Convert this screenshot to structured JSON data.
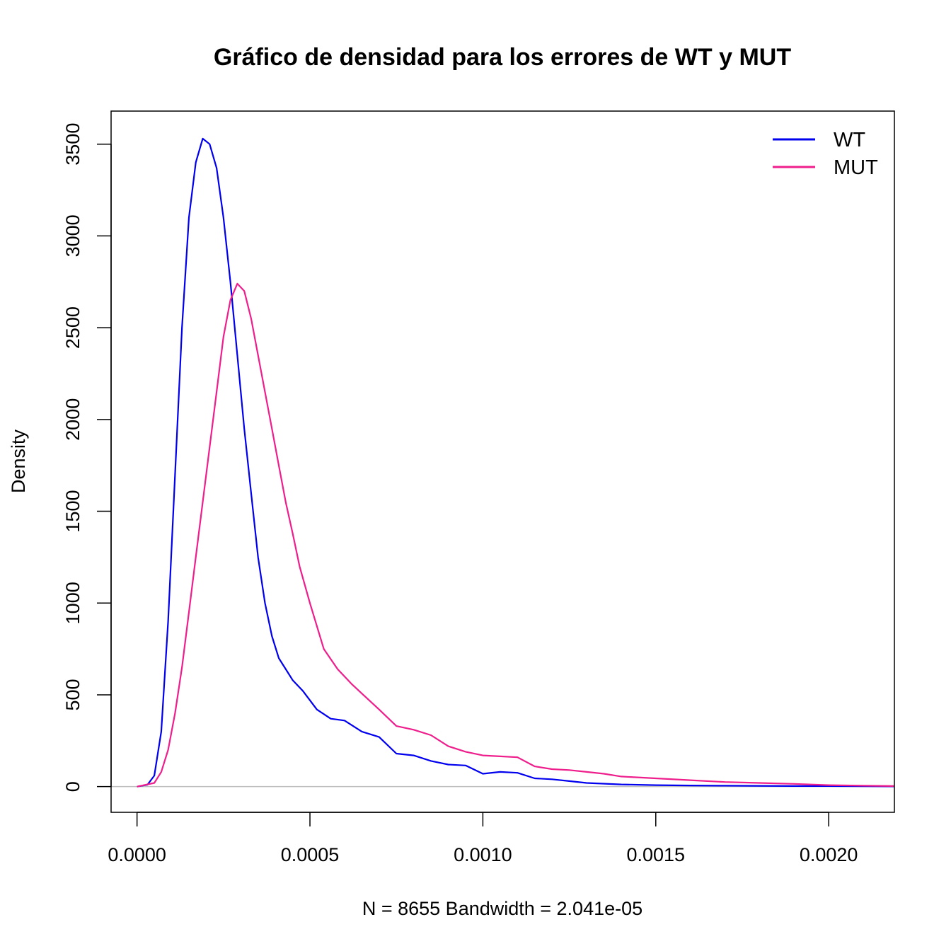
{
  "chart_data": {
    "type": "line",
    "title": "Gráfico de densidad para los errores de WT y MUT",
    "xlabel": "N = 8655   Bandwidth = 2.041e-05",
    "ylabel": "Density",
    "xlim": [
      -7.5e-05,
      0.00219
    ],
    "ylim": [
      -140,
      3680
    ],
    "x_ticks": [
      0.0,
      0.0005,
      0.001,
      0.0015,
      0.002
    ],
    "x_tick_labels": [
      "0.0000",
      "0.0005",
      "0.0010",
      "0.0015",
      "0.0020"
    ],
    "y_ticks": [
      0,
      500,
      1000,
      1500,
      2000,
      2500,
      3000,
      3500
    ],
    "y_tick_labels": [
      "0",
      "500",
      "1000",
      "1500",
      "2000",
      "2500",
      "3000",
      "3500"
    ],
    "zero_line": true,
    "grid": false,
    "legend": {
      "position": "top-right",
      "entries": [
        "WT",
        "MUT"
      ]
    },
    "series": [
      {
        "name": "WT",
        "color": "#0000ee",
        "x": [
          0.0,
          3e-05,
          5e-05,
          7e-05,
          9e-05,
          0.00011,
          0.00013,
          0.00015,
          0.00017,
          0.00019,
          0.00021,
          0.00023,
          0.00025,
          0.00027,
          0.00029,
          0.00031,
          0.00033,
          0.00035,
          0.00037,
          0.00039,
          0.00041,
          0.00043,
          0.00045,
          0.00048,
          0.00052,
          0.00056,
          0.0006,
          0.00065,
          0.0007,
          0.00075,
          0.0008,
          0.00085,
          0.0009,
          0.00095,
          0.001,
          0.00105,
          0.0011,
          0.00115,
          0.0012,
          0.00125,
          0.0013,
          0.0014,
          0.0015,
          0.0016,
          0.0017,
          0.0018,
          0.0019,
          0.002,
          0.0021,
          0.00219
        ],
        "values": [
          0,
          10,
          60,
          300,
          900,
          1700,
          2500,
          3100,
          3400,
          3530,
          3500,
          3370,
          3100,
          2750,
          2350,
          1950,
          1600,
          1250,
          1000,
          820,
          700,
          640,
          580,
          520,
          420,
          370,
          360,
          300,
          270,
          180,
          170,
          140,
          120,
          115,
          70,
          80,
          75,
          45,
          40,
          30,
          20,
          12,
          8,
          6,
          5,
          4,
          3,
          3,
          2,
          1
        ]
      },
      {
        "name": "MUT",
        "color": "#ee1e8c",
        "x": [
          0.0,
          5e-05,
          7e-05,
          9e-05,
          0.00011,
          0.00013,
          0.00015,
          0.00017,
          0.00019,
          0.00021,
          0.00023,
          0.00025,
          0.00027,
          0.00029,
          0.00031,
          0.00033,
          0.00035,
          0.00037,
          0.00039,
          0.00041,
          0.00043,
          0.00045,
          0.00047,
          0.0005,
          0.00054,
          0.00058,
          0.00062,
          0.00066,
          0.0007,
          0.00075,
          0.0008,
          0.00085,
          0.0009,
          0.00095,
          0.001,
          0.00105,
          0.0011,
          0.00115,
          0.0012,
          0.00125,
          0.0013,
          0.00135,
          0.0014,
          0.0015,
          0.0016,
          0.0017,
          0.0018,
          0.0019,
          0.002,
          0.0021,
          0.00219
        ],
        "values": [
          0,
          20,
          80,
          200,
          400,
          650,
          950,
          1250,
          1550,
          1850,
          2150,
          2450,
          2650,
          2740,
          2700,
          2550,
          2350,
          2150,
          1950,
          1750,
          1550,
          1380,
          1200,
          1000,
          750,
          640,
          560,
          490,
          420,
          330,
          310,
          280,
          220,
          190,
          170,
          165,
          160,
          110,
          95,
          90,
          80,
          70,
          55,
          45,
          35,
          25,
          20,
          15,
          8,
          5,
          3
        ]
      }
    ]
  }
}
